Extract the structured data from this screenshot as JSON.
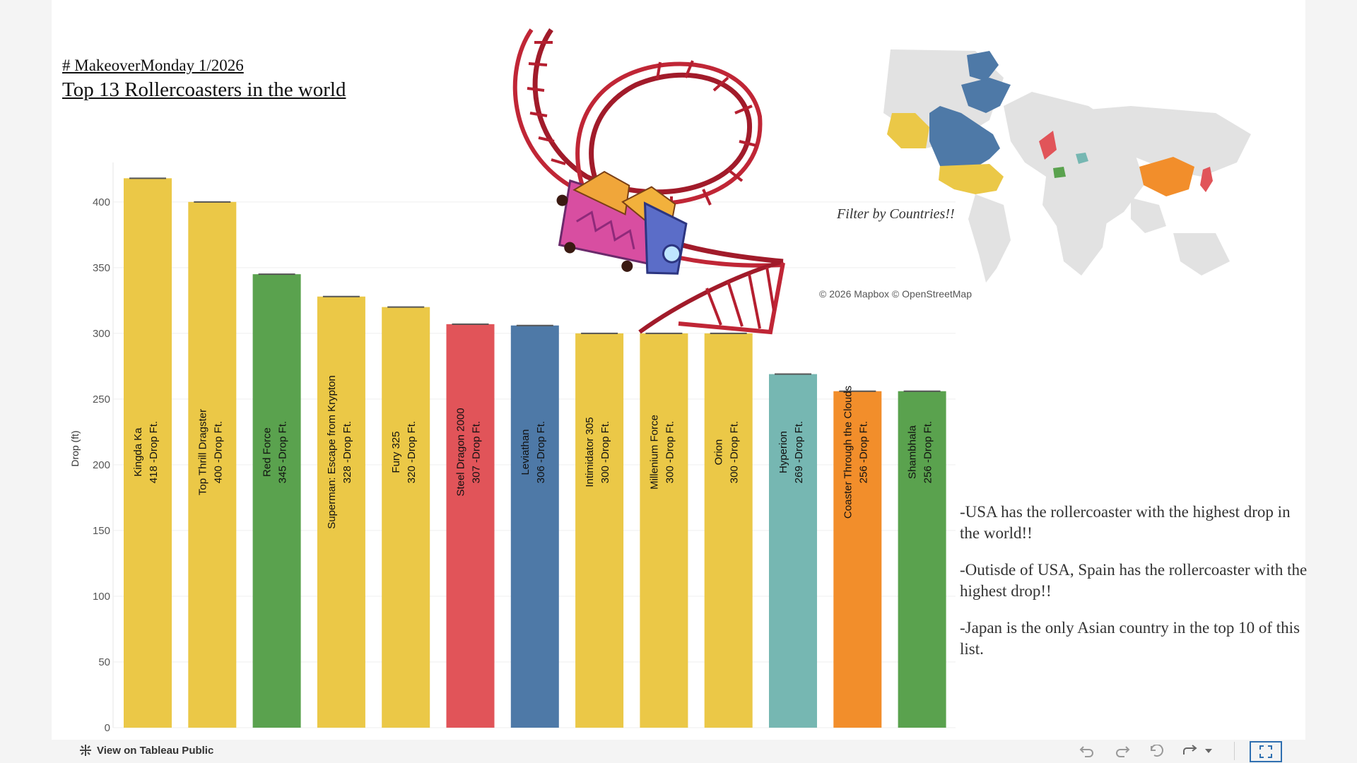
{
  "header": {
    "pre_title": "# MakeoverMonday 1/2026 ",
    "title": "Top 13 Rollercoasters in the world"
  },
  "map": {
    "filter_label": "Filter by Countries!!",
    "credit": "© 2026 Mapbox  © OpenStreetMap"
  },
  "insights": [
    "-USA has the  rollercoaster with the highest drop in the world!!",
    "-Outisde of USA, Spain has the rollercoaster with the highest drop!!",
    "-Japan is the only Asian country in the top 10 of this list."
  ],
  "footer": {
    "tableau_link": "View on Tableau Public"
  },
  "colors": {
    "usa": "#EBC847",
    "spain": "#5AA24E",
    "japan": "#E15459",
    "uk": "#4E79A7",
    "germany": "#76B7B2",
    "china": "#F28E2B"
  },
  "chart_data": {
    "type": "bar",
    "ylabel": "Drop (ft)",
    "ylim": [
      0,
      450
    ],
    "yticks": [
      0,
      50,
      100,
      150,
      200,
      250,
      300,
      350,
      400
    ],
    "label_suffix": "-Drop Ft.",
    "grid": true,
    "bars": [
      {
        "name": "Kingda Ka",
        "value": 418,
        "color": "#EBC847"
      },
      {
        "name": "Top Thrill Dragster",
        "value": 400,
        "color": "#EBC847"
      },
      {
        "name": "Red Force",
        "value": 345,
        "color": "#5AA24E"
      },
      {
        "name": "Superman: Escape from Krypton",
        "value": 328,
        "color": "#EBC847"
      },
      {
        "name": "Fury 325",
        "value": 320,
        "color": "#EBC847"
      },
      {
        "name": "Steel Dragon 2000",
        "value": 307,
        "color": "#E15459"
      },
      {
        "name": "Leviathan",
        "value": 306,
        "color": "#4E79A7"
      },
      {
        "name": "Intimidator 305",
        "value": 300,
        "color": "#EBC847"
      },
      {
        "name": "Millenium Force",
        "value": 300,
        "color": "#EBC847"
      },
      {
        "name": "Orion",
        "value": 300,
        "color": "#EBC847"
      },
      {
        "name": "Hyperion",
        "value": 269,
        "color": "#76B7B2"
      },
      {
        "name": "Coaster Through the Clouds",
        "value": 256,
        "color": "#F28E2B"
      },
      {
        "name": "Shambhala",
        "value": 256,
        "color": "#5AA24E"
      }
    ]
  }
}
